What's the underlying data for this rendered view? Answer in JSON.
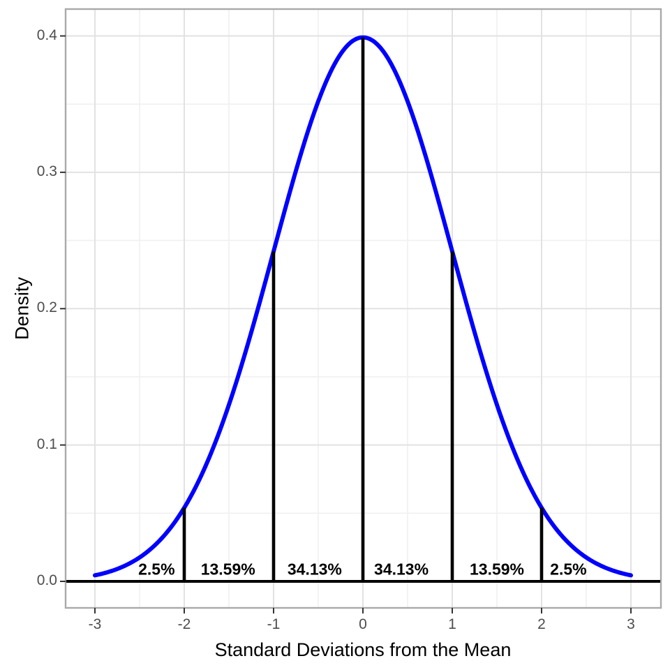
{
  "chart_data": {
    "type": "line",
    "title": "",
    "xlabel": "Standard Deviations from the Mean",
    "ylabel": "Density",
    "x_ticks": [
      {
        "label": "-3",
        "value": -3
      },
      {
        "label": "-2",
        "value": -2
      },
      {
        "label": "-1",
        "value": -1
      },
      {
        "label": "0",
        "value": 0
      },
      {
        "label": "1",
        "value": 1
      },
      {
        "label": "2",
        "value": 2
      },
      {
        "label": "3",
        "value": 3
      }
    ],
    "y_ticks": [
      {
        "label": "0.0",
        "value": 0.0
      },
      {
        "label": "0.1",
        "value": 0.1
      },
      {
        "label": "0.2",
        "value": 0.2
      },
      {
        "label": "0.3",
        "value": 0.3
      },
      {
        "label": "0.4",
        "value": 0.4
      }
    ],
    "minor_x": [
      -2.5,
      -1.5,
      -0.5,
      0.5,
      1.5,
      2.5
    ],
    "minor_y": [
      0.05,
      0.15,
      0.25,
      0.35
    ],
    "xlim": [
      -3.33,
      3.34
    ],
    "ylim": [
      -0.0195,
      0.4195
    ],
    "grid": "major-and-minor",
    "legend": "none",
    "curve": {
      "name": "standard-normal-pdf",
      "mean": 0,
      "sd": 1,
      "x_range": [
        -3,
        3
      ],
      "peak_density": 0.3989
    },
    "segments": [
      {
        "x": -2,
        "density": 0.054
      },
      {
        "x": -1,
        "density": 0.242
      },
      {
        "x": 0,
        "density": 0.3989
      },
      {
        "x": 1,
        "density": 0.242
      },
      {
        "x": 2,
        "density": 0.054
      }
    ],
    "baseline_density": 0,
    "area_labels": [
      {
        "text": "2.5%",
        "x": -2.31
      },
      {
        "text": "13.59%",
        "x": -1.51
      },
      {
        "text": "34.13%",
        "x": -0.54
      },
      {
        "text": "34.13%",
        "x": 0.43
      },
      {
        "text": "13.59%",
        "x": 1.5
      },
      {
        "text": "2.5%",
        "x": 2.3
      }
    ]
  },
  "colors": {
    "curve": "#0000FF",
    "segment_line": "#000000",
    "baseline": "#000000",
    "panel_border": "#A9A9A9",
    "grid_major": "#E2E2E2",
    "grid_minor": "#F0F0F0",
    "tick_mark": "#333333",
    "tick_label": "#4D4D4D",
    "axis_title": "#000000",
    "area_label": "#000000",
    "background": "#FFFFFF"
  }
}
